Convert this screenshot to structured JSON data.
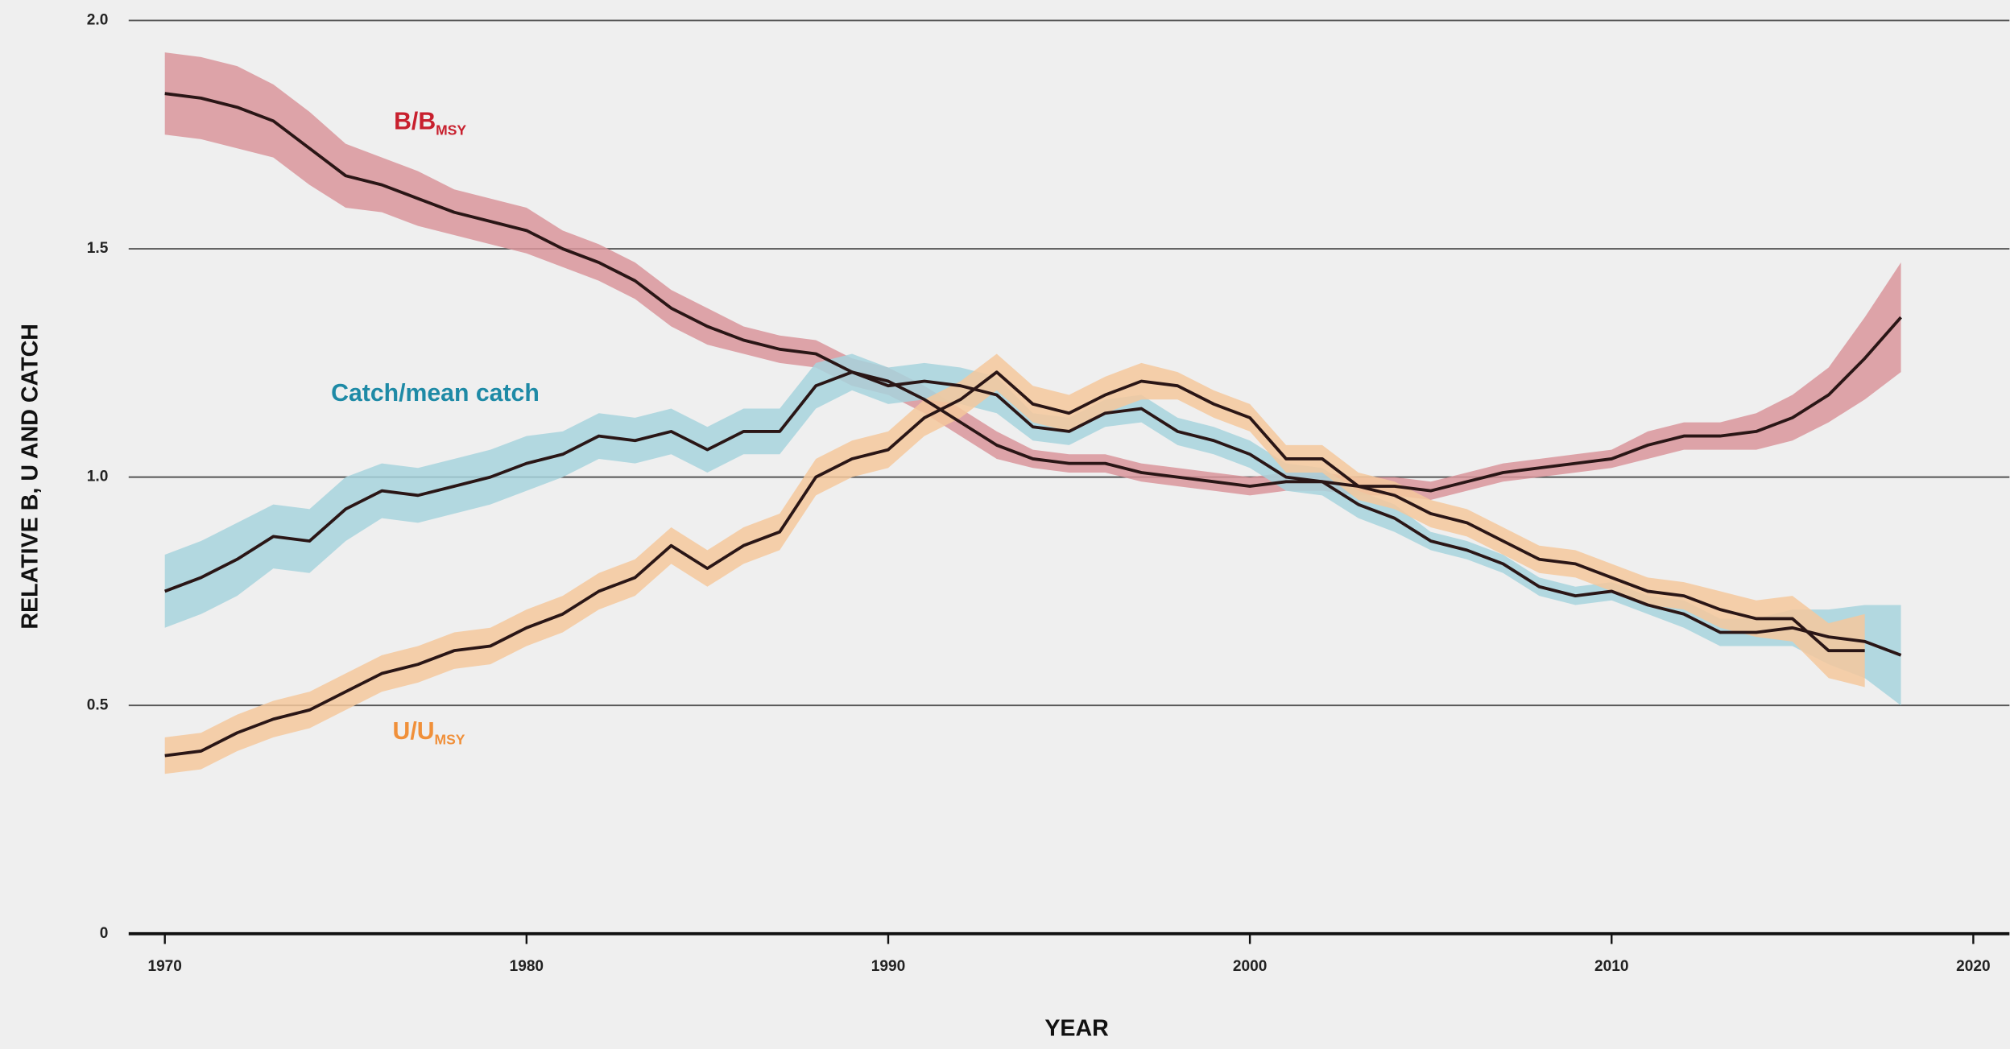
{
  "chart_data": {
    "type": "line",
    "xlabel": "YEAR",
    "ylabel": "RELATIVE B, U AND CATCH",
    "x": [
      1970,
      1971,
      1972,
      1973,
      1974,
      1975,
      1976,
      1977,
      1978,
      1979,
      1980,
      1981,
      1982,
      1983,
      1984,
      1985,
      1986,
      1987,
      1988,
      1989,
      1990,
      1991,
      1992,
      1993,
      1994,
      1995,
      1996,
      1997,
      1998,
      1999,
      2000,
      2001,
      2002,
      2003,
      2004,
      2005,
      2006,
      2007,
      2008,
      2009,
      2010,
      2011,
      2012,
      2013,
      2014,
      2015,
      2016,
      2017,
      2018
    ],
    "xlim": [
      1969,
      2021
    ],
    "xticks": [
      1970,
      1980,
      1990,
      2000,
      2010,
      2020
    ],
    "ylim": [
      0,
      2.0
    ],
    "yticks": [
      0,
      0.5,
      {
        "value": 1.0,
        "label": "1.0"
      },
      1.5,
      {
        "value": 2.0,
        "label": "2.0"
      }
    ],
    "grid": true,
    "line_color": "#2a1616",
    "series": [
      {
        "name": "B/B",
        "subscript": "MSY",
        "color": "#c8202e",
        "band_color": "#d9959b",
        "values": [
          1.84,
          1.83,
          1.81,
          1.78,
          1.72,
          1.66,
          1.64,
          1.61,
          1.58,
          1.56,
          1.54,
          1.5,
          1.47,
          1.43,
          1.37,
          1.33,
          1.3,
          1.28,
          1.27,
          1.23,
          1.21,
          1.17,
          1.12,
          1.07,
          1.04,
          1.03,
          1.03,
          1.01,
          1.0,
          0.99,
          0.98,
          0.99,
          0.99,
          0.98,
          0.98,
          0.97,
          0.99,
          1.01,
          1.02,
          1.03,
          1.04,
          1.07,
          1.09,
          1.09,
          1.1,
          1.13,
          1.18,
          1.26,
          1.35
        ],
        "errors": [
          0.09,
          0.09,
          0.09,
          0.08,
          0.08,
          0.07,
          0.06,
          0.06,
          0.05,
          0.05,
          0.05,
          0.04,
          0.04,
          0.04,
          0.04,
          0.04,
          0.03,
          0.03,
          0.03,
          0.03,
          0.03,
          0.03,
          0.03,
          0.03,
          0.02,
          0.02,
          0.02,
          0.02,
          0.02,
          0.02,
          0.02,
          0.02,
          0.02,
          0.02,
          0.02,
          0.02,
          0.02,
          0.02,
          0.02,
          0.02,
          0.02,
          0.03,
          0.03,
          0.03,
          0.04,
          0.05,
          0.06,
          0.09,
          0.12
        ]
      },
      {
        "name": "Catch/mean catch",
        "color": "#1e8aa6",
        "band_color": "#a7d4dd",
        "values": [
          0.75,
          0.78,
          0.82,
          0.87,
          0.86,
          0.93,
          0.97,
          0.96,
          0.98,
          1.0,
          1.03,
          1.05,
          1.09,
          1.08,
          1.1,
          1.06,
          1.1,
          1.1,
          1.2,
          1.23,
          1.2,
          1.21,
          1.2,
          1.18,
          1.11,
          1.1,
          1.14,
          1.15,
          1.1,
          1.08,
          1.05,
          1.0,
          0.99,
          0.94,
          0.91,
          0.86,
          0.84,
          0.81,
          0.76,
          0.74,
          0.75,
          0.72,
          0.7,
          0.66,
          0.66,
          0.67,
          0.65,
          0.64,
          0.61
        ],
        "errors": [
          0.08,
          0.08,
          0.08,
          0.07,
          0.07,
          0.07,
          0.06,
          0.06,
          0.06,
          0.06,
          0.06,
          0.05,
          0.05,
          0.05,
          0.05,
          0.05,
          0.05,
          0.05,
          0.05,
          0.04,
          0.04,
          0.04,
          0.04,
          0.04,
          0.03,
          0.03,
          0.03,
          0.03,
          0.03,
          0.03,
          0.03,
          0.03,
          0.03,
          0.03,
          0.03,
          0.02,
          0.02,
          0.02,
          0.02,
          0.02,
          0.02,
          0.02,
          0.03,
          0.03,
          0.03,
          0.04,
          0.06,
          0.08,
          0.11
        ]
      },
      {
        "name": "U/U",
        "subscript": "MSY",
        "color": "#f0903a",
        "band_color": "#f4c89c",
        "values": [
          0.39,
          0.4,
          0.44,
          0.47,
          0.49,
          0.53,
          0.57,
          0.59,
          0.62,
          0.63,
          0.67,
          0.7,
          0.75,
          0.78,
          0.85,
          0.8,
          0.85,
          0.88,
          1.0,
          1.04,
          1.06,
          1.13,
          1.17,
          1.23,
          1.16,
          1.14,
          1.18,
          1.21,
          1.2,
          1.16,
          1.13,
          1.04,
          1.04,
          0.98,
          0.96,
          0.92,
          0.9,
          0.86,
          0.82,
          0.81,
          0.78,
          0.75,
          0.74,
          0.71,
          0.69,
          0.69,
          0.62,
          0.62,
          null
        ],
        "errors": [
          0.04,
          0.04,
          0.04,
          0.04,
          0.04,
          0.04,
          0.04,
          0.04,
          0.04,
          0.04,
          0.04,
          0.04,
          0.04,
          0.04,
          0.04,
          0.04,
          0.04,
          0.04,
          0.04,
          0.04,
          0.04,
          0.04,
          0.04,
          0.04,
          0.04,
          0.04,
          0.04,
          0.04,
          0.03,
          0.03,
          0.03,
          0.03,
          0.03,
          0.03,
          0.03,
          0.03,
          0.03,
          0.03,
          0.03,
          0.03,
          0.03,
          0.03,
          0.03,
          0.04,
          0.04,
          0.05,
          0.06,
          0.08,
          null
        ]
      }
    ]
  }
}
